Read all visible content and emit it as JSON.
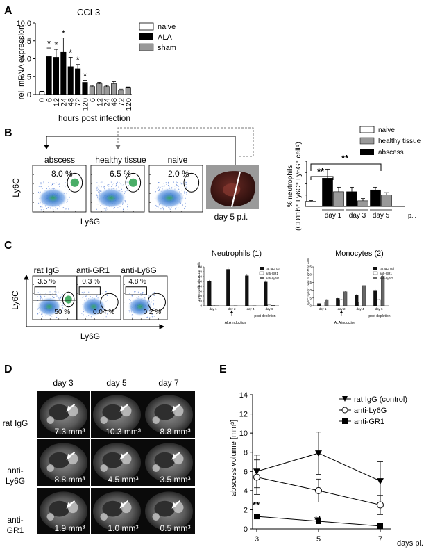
{
  "panel_letters": {
    "a": "A",
    "b": "B",
    "c": "C",
    "d": "D",
    "e": "E"
  },
  "panelA": {
    "title": "CCL3",
    "ylabel": "rel. mRNA expression",
    "xlabel": "hours post infection",
    "legend": [
      "naive",
      "ALA",
      "sham"
    ]
  },
  "panelB": {
    "flow_titles": [
      "abscess",
      "healthy tissue",
      "naive"
    ],
    "gate_pcts": [
      "8.0 %",
      "6.5 %",
      "2.0 %"
    ],
    "ylab": "Ly6C",
    "xlab": "Ly6G",
    "day_label": "day 5 p.i.",
    "bar_ylabel_1": "% neutrophils",
    "bar_ylabel_2": "(CD11b⁺ Ly6C⁺ Ly6G⁺ cells)",
    "legend": [
      "naive",
      "healthy tissue",
      "abscess"
    ],
    "sig": [
      "**",
      "**"
    ],
    "pi": "p.i."
  },
  "panelC": {
    "flow_titles": [
      "rat IgG",
      "anti-GR1",
      "anti-Ly6G"
    ],
    "upper_pcts": [
      "3.5 %",
      "0.3 %",
      "4.8 %"
    ],
    "lower_pcts": [
      "50 %",
      "0.04 %",
      "0.2 %"
    ],
    "ylab": "Ly6C",
    "xlab": "Ly6G",
    "neut_title": "Neutrophils (1)",
    "mono_title": "Monocytes (2)",
    "neut_ylabel": "Ly6G⁺ cells of CD11b⁺ cells",
    "mono_ylabel": "Ly6C⁺Ly6G⁻ cells of CD11b⁺ cells",
    "small_legend": [
      "rat IgG ctrl",
      "anti-GR1",
      "anti-Ly6G"
    ],
    "ala_induction": "ALA induction",
    "post_depletion": "post depletion"
  },
  "panelD": {
    "col_titles": [
      "day 3",
      "day 5",
      "day 7"
    ],
    "row_titles": [
      [
        "rat IgG"
      ],
      [
        "anti-",
        "Ly6G"
      ],
      [
        "anti-",
        "GR1"
      ]
    ],
    "volumes": [
      [
        "7.3 mm³",
        "10.3 mm³",
        "8.8 mm³"
      ],
      [
        "8.8 mm³",
        "4.5 mm³",
        "3.5 mm³"
      ],
      [
        "1.9 mm³",
        "1.0 mm³",
        "0.5 mm³"
      ]
    ]
  },
  "panelE": {
    "ylabel": "abscess volume [mm³]",
    "xlabel": "days pi.",
    "legend": [
      "rat IgG (control)",
      "anti-Ly6G",
      "anti-GR1"
    ],
    "sig": [
      "**",
      "**"
    ]
  },
  "chart_data": [
    {
      "id": "A",
      "type": "bar",
      "title": "CCL3",
      "categories": [
        "0",
        "6",
        "12",
        "24",
        "48",
        "72",
        "120",
        "6",
        "12",
        "24",
        "48",
        "72",
        "120"
      ],
      "groups": [
        "naive",
        "ALA",
        "ALA",
        "ALA",
        "ALA",
        "ALA",
        "ALA",
        "sham",
        "sham",
        "sham",
        "sham",
        "sham",
        "sham"
      ],
      "values": [
        0.4,
        5.3,
        5.2,
        5.9,
        3.9,
        3.6,
        1.7,
        1.1,
        1.5,
        1.1,
        1.5,
        0.6,
        1.0
      ],
      "errors": [
        0.05,
        1.2,
        1.1,
        2.0,
        1.3,
        0.6,
        0.3,
        0.15,
        0.2,
        0.15,
        0.3,
        0.15,
        0.05
      ],
      "significant": [
        false,
        true,
        true,
        true,
        true,
        true,
        true,
        false,
        false,
        false,
        false,
        false,
        false
      ],
      "ylim": [
        0,
        10
      ],
      "yticks": [
        "0",
        "2.5",
        "5.0",
        "7.5",
        "10.0"
      ],
      "colors": {
        "naive": "#ffffff",
        "ALA": "#000000",
        "sham": "#999999"
      },
      "xlabel": "hours post infection",
      "ylabel": "rel. mRNA expression"
    },
    {
      "id": "B",
      "type": "bar",
      "categories": [
        "naive",
        "day 1",
        "day 3",
        "day 5"
      ],
      "series": [
        {
          "name": "naive",
          "values": [
            2.3,
            null,
            null,
            null
          ],
          "errors": [
            0.3,
            null,
            null,
            null
          ]
        },
        {
          "name": "abscess",
          "values": [
            null,
            12.5,
            6.5,
            7.3
          ],
          "errors": [
            null,
            4.0,
            2.0,
            1.2
          ]
        },
        {
          "name": "healthy tissue",
          "values": [
            null,
            6.5,
            2.5,
            5.1
          ],
          "errors": [
            null,
            2.0,
            1.0,
            1.0
          ]
        }
      ],
      "ylim": [
        0,
        20
      ],
      "yticks": [
        "0",
        "5",
        "10",
        "15",
        "20"
      ],
      "ylabel": "% neutrophils (CD11b⁺ Ly6C⁺ Ly6G⁺ cells)"
    },
    {
      "id": "C1",
      "type": "bar",
      "title": "Neutrophils (1)",
      "categories": [
        "day 1",
        "day 2",
        "day 4",
        "day 6"
      ],
      "series": [
        {
          "name": "rat IgG ctrl",
          "values": [
            50,
            75,
            62,
            49
          ]
        },
        {
          "name": "anti-GR1",
          "values": [
            1,
            0.5,
            0.5,
            2
          ]
        },
        {
          "name": "anti-Ly6G",
          "values": [
            0.5,
            0.5,
            0.5,
            1
          ]
        }
      ],
      "ylim": [
        0,
        80
      ],
      "yticks": [
        "0",
        "10",
        "20",
        "30",
        "40",
        "50",
        "60",
        "70",
        "80"
      ]
    },
    {
      "id": "C2",
      "type": "bar",
      "title": "Monocytes (2)",
      "categories": [
        "day 1",
        "day 2",
        "day 4",
        "day 6"
      ],
      "series": [
        {
          "name": "rat IgG ctrl",
          "values": [
            1.5,
            4.8,
            7,
            10
          ]
        },
        {
          "name": "anti-GR1",
          "values": [
            2.5,
            4,
            2.5,
            4
          ]
        },
        {
          "name": "anti-Ly6G",
          "values": [
            4,
            9,
            13,
            19
          ]
        }
      ],
      "ylim": [
        0,
        25
      ],
      "yticks": [
        "0",
        "5",
        "10",
        "15",
        "20",
        "25"
      ]
    },
    {
      "id": "E",
      "type": "line",
      "x": [
        3,
        5,
        7
      ],
      "xticks": [
        "3",
        "5",
        "7"
      ],
      "series": [
        {
          "name": "rat IgG (control)",
          "values": [
            6.0,
            7.9,
            5.0
          ],
          "errors": [
            1.7,
            2.2,
            2.0
          ]
        },
        {
          "name": "anti-Ly6G",
          "values": [
            5.4,
            4.0,
            2.5
          ],
          "errors": [
            1.8,
            1.2,
            1.0
          ]
        },
        {
          "name": "anti-GR1",
          "values": [
            1.3,
            0.8,
            0.3
          ],
          "errors": [
            0.2,
            0.1,
            0.05
          ]
        }
      ],
      "ylim": [
        0,
        14
      ],
      "yticks": [
        "0",
        "2",
        "4",
        "6",
        "8",
        "10",
        "12",
        "14"
      ],
      "xlabel": "days pi.",
      "ylabel": "abscess volume [mm³]"
    }
  ]
}
